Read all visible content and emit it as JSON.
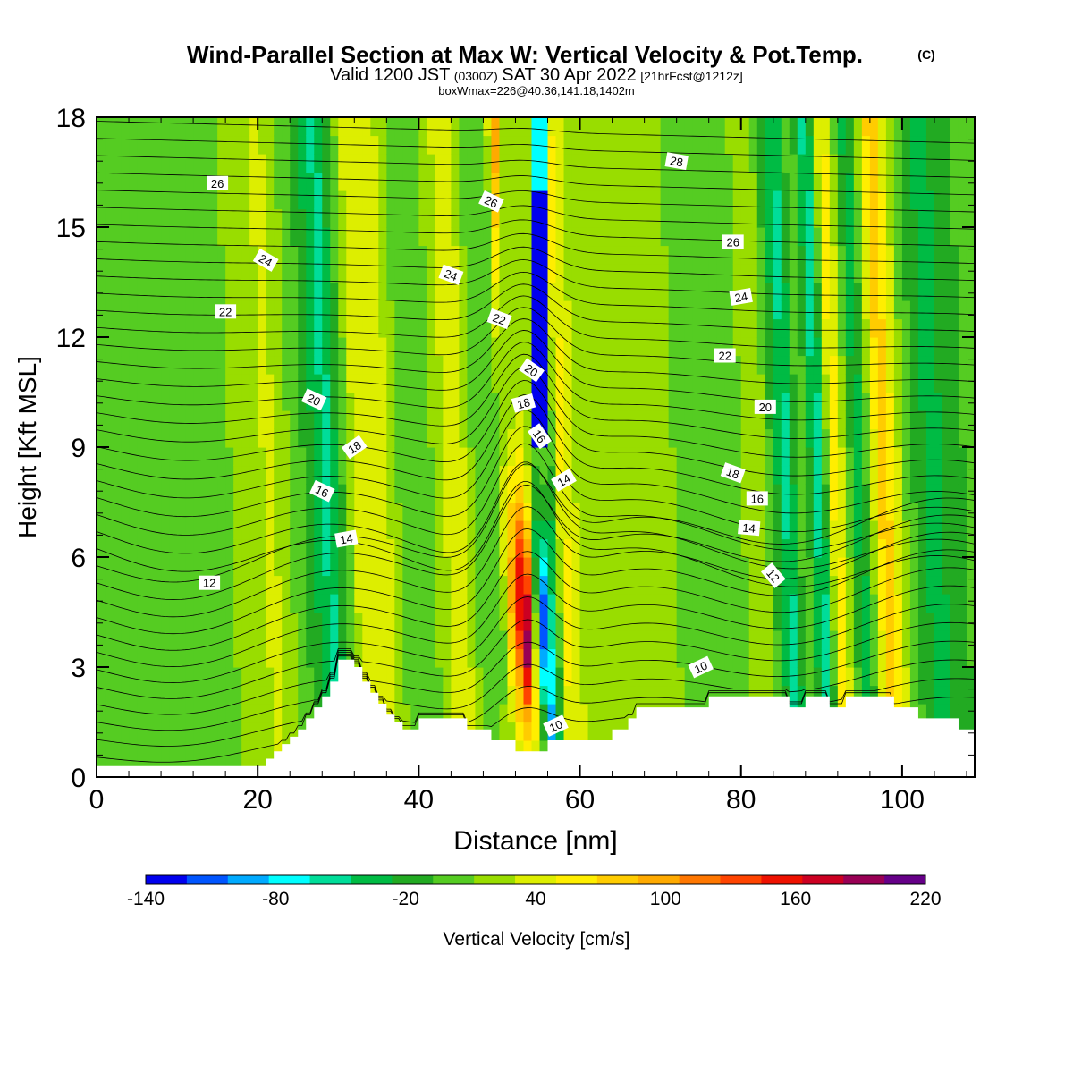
{
  "chart_data": {
    "type": "heatmap",
    "title": "Wind-Parallel Section at Max W: Vertical Velocity & Pot.Temp.",
    "title_mark": "(C)",
    "subtitle": {
      "valid": "Valid 1200 JST",
      "utc": "(0300Z)",
      "date": "SAT 30 Apr 2022",
      "fcst": "[21hrFcst@1212z]"
    },
    "note": "boxWmax=226@40.36,141.18,1402m",
    "xlabel": "Distance [nm]",
    "ylabel": "Height [Kft MSL]",
    "xlim": [
      0,
      109
    ],
    "ylim": [
      0,
      18
    ],
    "x_ticks": [
      "0",
      "20",
      "40",
      "60",
      "80",
      "100"
    ],
    "y_ticks": [
      "0",
      "3",
      "6",
      "9",
      "12",
      "15",
      "18"
    ],
    "x_tick_values": [
      0,
      20,
      40,
      60,
      80,
      100
    ],
    "y_tick_values": [
      0,
      3,
      6,
      9,
      12,
      15,
      18
    ],
    "colorbar": {
      "label": "Vertical Velocity [cm/s]",
      "tick_labels": [
        "-140",
        "-80",
        "-20",
        "40",
        "100",
        "160",
        "220"
      ],
      "levels": [
        -140,
        -120,
        -100,
        -80,
        -60,
        -40,
        -20,
        0,
        20,
        40,
        60,
        80,
        100,
        120,
        140,
        160,
        180,
        200,
        220
      ],
      "colors": [
        "#0000ee",
        "#0055ff",
        "#00aaff",
        "#00ffff",
        "#00dd99",
        "#00bb44",
        "#22aa22",
        "#55cc22",
        "#99dd00",
        "#ddee00",
        "#ffee00",
        "#ffcc00",
        "#ffaa00",
        "#ff7700",
        "#ff4400",
        "#ee1100",
        "#cc0022",
        "#990055",
        "#660088"
      ]
    },
    "terrain_kft": [
      0.3,
      0.3,
      0.3,
      0.3,
      0.3,
      0.3,
      0.3,
      0.3,
      0.3,
      0.3,
      0.3,
      0.3,
      0.3,
      0.3,
      0.3,
      0.3,
      0.3,
      0.3,
      0.3,
      0.3,
      0.3,
      0.5,
      0.7,
      0.9,
      1.1,
      1.3,
      1.6,
      1.9,
      2.2,
      2.6,
      3.2,
      3.2,
      3.0,
      2.6,
      2.3,
      2.0,
      1.7,
      1.5,
      1.3,
      1.3,
      1.6,
      1.6,
      1.6,
      1.6,
      1.6,
      1.6,
      1.3,
      1.3,
      1.3,
      1.0,
      1.0,
      1.0,
      0.7,
      0.7,
      0.7,
      0.7,
      1.0,
      1.0,
      1.0,
      1.0,
      1.0,
      1.0,
      1.0,
      1.0,
      1.3,
      1.3,
      1.6,
      1.9,
      1.9,
      1.9,
      1.9,
      1.9,
      1.9,
      1.9,
      1.9,
      1.9,
      2.2,
      2.2,
      2.2,
      2.2,
      2.2,
      2.2,
      2.2,
      2.2,
      2.2,
      2.2,
      1.9,
      1.9,
      2.2,
      2.2,
      2.2,
      1.9,
      1.9,
      2.2,
      2.2,
      2.2,
      2.2,
      2.2,
      2.2,
      1.9,
      1.9,
      1.9,
      1.6,
      1.6,
      1.6,
      1.6,
      1.6,
      1.3,
      1.3,
      1.3
    ],
    "w_columns": [
      {
        "x": 0,
        "w": 0
      },
      {
        "x": 5,
        "w": 15
      },
      {
        "x": 10,
        "w": 5
      },
      {
        "x": 15,
        "w": 10
      },
      {
        "x": 22,
        "w": 45
      },
      {
        "x": 26,
        "w": 0
      },
      {
        "x": 29,
        "w": -50
      },
      {
        "x": 33,
        "w": 60
      },
      {
        "x": 36,
        "w": 50
      },
      {
        "x": 39,
        "w": 0
      },
      {
        "x": 42,
        "w": 20
      },
      {
        "x": 45,
        "w": 60
      },
      {
        "x": 47,
        "w": 20
      },
      {
        "x": 50,
        "w": 0
      },
      {
        "x": 53,
        "w": 220
      },
      {
        "x": 55,
        "w": -130
      },
      {
        "x": 58,
        "w": 70
      },
      {
        "x": 61,
        "w": 20
      },
      {
        "x": 66,
        "w": 25
      },
      {
        "x": 72,
        "w": 20
      },
      {
        "x": 78,
        "w": 10
      },
      {
        "x": 83,
        "w": 30
      },
      {
        "x": 86,
        "w": -50
      },
      {
        "x": 88,
        "w": 20
      },
      {
        "x": 90,
        "w": -60
      },
      {
        "x": 92,
        "w": 80
      },
      {
        "x": 95,
        "w": -40
      },
      {
        "x": 98,
        "w": 100
      },
      {
        "x": 101,
        "w": 10
      },
      {
        "x": 104,
        "w": -30
      },
      {
        "x": 108,
        "w": 0
      }
    ],
    "theta_contours": {
      "levels": [
        10,
        11,
        12,
        13,
        14,
        15,
        16,
        17,
        18,
        19,
        20,
        21,
        22,
        23,
        24,
        25,
        26,
        27,
        28
      ],
      "labels": [
        {
          "text": "26",
          "x": 15,
          "y": 16.2,
          "rot": 0
        },
        {
          "text": "24",
          "x": 21,
          "y": 14.1,
          "rot": 30
        },
        {
          "text": "22",
          "x": 16,
          "y": 12.7,
          "rot": 0
        },
        {
          "text": "20",
          "x": 27,
          "y": 10.3,
          "rot": 25
        },
        {
          "text": "18",
          "x": 32,
          "y": 9.0,
          "rot": -35
        },
        {
          "text": "16",
          "x": 28,
          "y": 7.8,
          "rot": 25
        },
        {
          "text": "14",
          "x": 31,
          "y": 6.5,
          "rot": -10
        },
        {
          "text": "12",
          "x": 14,
          "y": 5.3,
          "rot": 0
        },
        {
          "text": "26",
          "x": 49,
          "y": 15.7,
          "rot": 25
        },
        {
          "text": "24",
          "x": 44,
          "y": 13.7,
          "rot": 20
        },
        {
          "text": "22",
          "x": 50,
          "y": 12.5,
          "rot": 20
        },
        {
          "text": "20",
          "x": 54,
          "y": 11.1,
          "rot": 35
        },
        {
          "text": "18",
          "x": 53,
          "y": 10.2,
          "rot": -15
        },
        {
          "text": "16",
          "x": 55,
          "y": 9.3,
          "rot": 55
        },
        {
          "text": "14",
          "x": 58,
          "y": 8.1,
          "rot": -30
        },
        {
          "text": "10",
          "x": 57,
          "y": 1.4,
          "rot": -25
        },
        {
          "text": "28",
          "x": 72,
          "y": 16.8,
          "rot": 10
        },
        {
          "text": "26",
          "x": 79,
          "y": 14.6,
          "rot": 0
        },
        {
          "text": "24",
          "x": 80,
          "y": 13.1,
          "rot": -10
        },
        {
          "text": "22",
          "x": 78,
          "y": 11.5,
          "rot": 0
        },
        {
          "text": "20",
          "x": 83,
          "y": 10.1,
          "rot": 0
        },
        {
          "text": "18",
          "x": 79,
          "y": 8.3,
          "rot": 20
        },
        {
          "text": "16",
          "x": 82,
          "y": 7.6,
          "rot": 0
        },
        {
          "text": "14",
          "x": 81,
          "y": 6.8,
          "rot": 5
        },
        {
          "text": "12",
          "x": 84,
          "y": 5.5,
          "rot": 50
        },
        {
          "text": "10",
          "x": 75,
          "y": 3.0,
          "rot": -25
        }
      ]
    }
  }
}
